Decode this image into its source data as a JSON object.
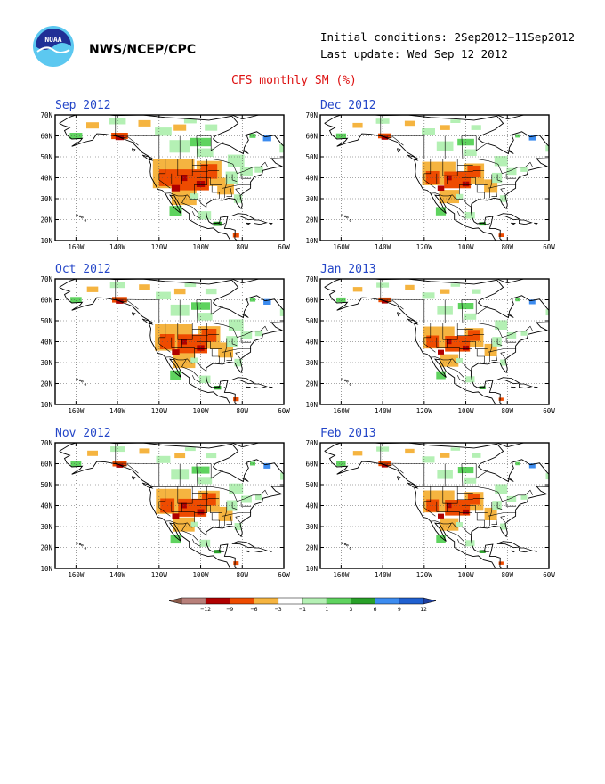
{
  "header": {
    "org": "NWS/NCEP/CPC",
    "initial_conditions": "Initial conditions: 2Sep2012−11Sep2012",
    "last_update": "Last update: Wed Sep 12 2012",
    "logo_icon": "noaa-logo-icon",
    "logo_text": "NOAA"
  },
  "figure_title": "CFS monthly SM (%)",
  "panels": [
    {
      "title": "Sep 2012",
      "intensity": 1.0
    },
    {
      "title": "Dec 2012",
      "intensity": 0.8
    },
    {
      "title": "Oct 2012",
      "intensity": 0.9
    },
    {
      "title": "Jan 2013",
      "intensity": 0.75
    },
    {
      "title": "Nov 2012",
      "intensity": 0.85
    },
    {
      "title": "Feb 2013",
      "intensity": 0.75
    }
  ],
  "axes": {
    "lat_labels": [
      "70N",
      "60N",
      "50N",
      "40N",
      "30N",
      "20N",
      "10N"
    ],
    "lon_labels": [
      "160W",
      "140W",
      "120W",
      "100W",
      "80W",
      "60W"
    ],
    "lat_values": [
      70,
      60,
      50,
      40,
      30,
      20,
      10
    ],
    "lon_values": [
      -160,
      -140,
      -120,
      -100,
      -80,
      -60
    ],
    "lat_range": [
      10,
      70
    ],
    "lon_range": [
      -170,
      -60
    ]
  },
  "colorbar": {
    "labels": [
      "−12",
      "−9",
      "−6",
      "−3",
      "−1",
      "1",
      "3",
      "6",
      "9",
      "12"
    ],
    "colors": [
      "#8b5a4a",
      "#b8807a",
      "#b00000",
      "#ee4b00",
      "#f5b440",
      "#ffffff",
      "#b4f0b4",
      "#5fd35f",
      "#28a028",
      "#3c8cf0",
      "#2060d0",
      "#1e3fa0"
    ]
  },
  "map_colors": {
    "strong_dry": "#ee4b00",
    "medium_dry": "#f5b440",
    "very_dry": "#b00000",
    "light_wet": "#b4f0b4",
    "medium_wet": "#5fd35f",
    "strong_wet": "#28a028",
    "very_wet": "#3c8cf0"
  }
}
